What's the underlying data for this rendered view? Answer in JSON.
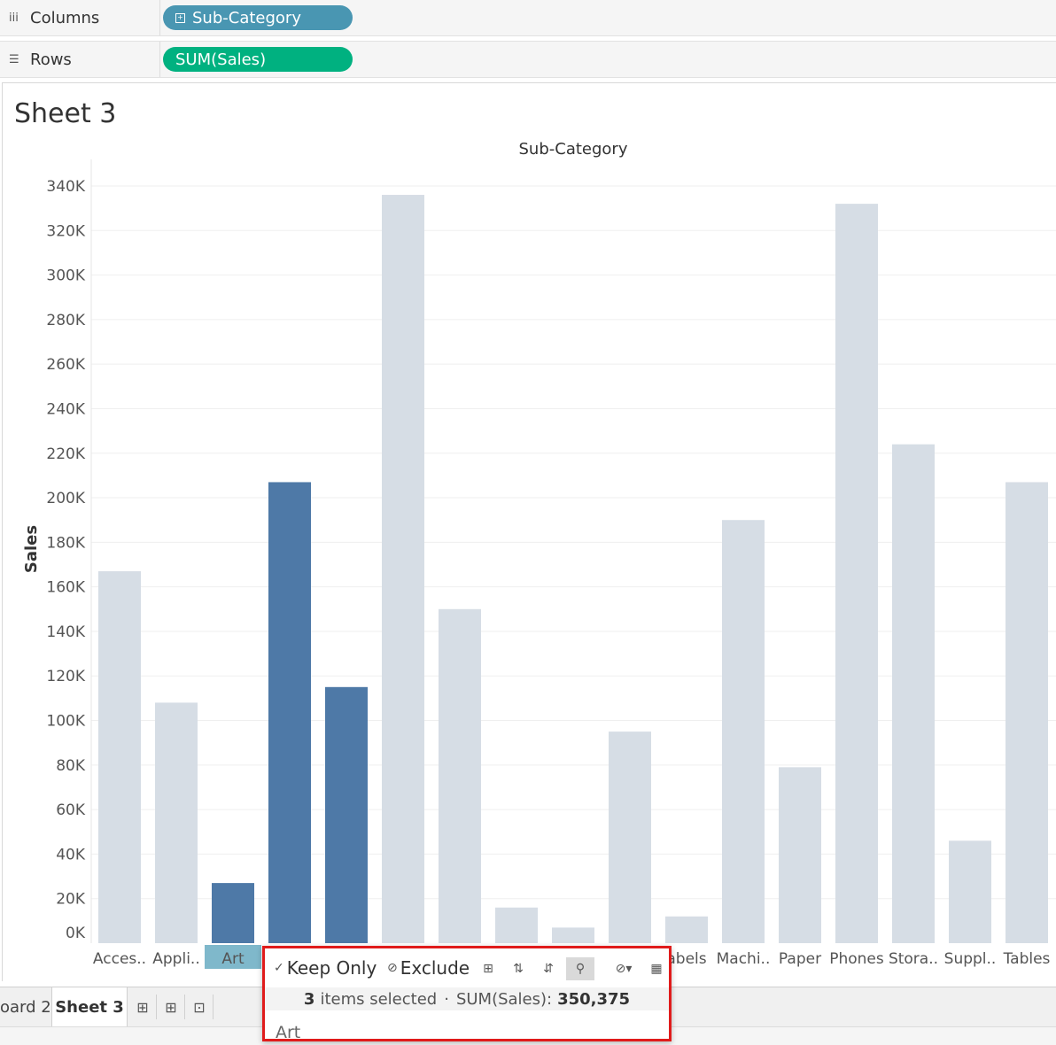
{
  "shelves": {
    "columns": {
      "label": "Columns",
      "icon": "columns-icon",
      "pill": "Sub-Category",
      "pill_color": "#4996b2"
    },
    "rows": {
      "label": "Rows",
      "icon": "rows-icon",
      "pill": "SUM(Sales)",
      "pill_color": "#00b180"
    }
  },
  "sheet": {
    "title": "Sheet 3"
  },
  "chart_data": {
    "type": "bar",
    "title": "Sub-Category",
    "xlabel": "",
    "ylabel": "Sales",
    "ylim": [
      0,
      340000
    ],
    "yticks": [
      "0K",
      "20K",
      "40K",
      "60K",
      "80K",
      "100K",
      "120K",
      "140K",
      "160K",
      "180K",
      "200K",
      "220K",
      "240K",
      "260K",
      "280K",
      "300K",
      "320K",
      "340K"
    ],
    "categories": [
      "Acces..",
      "Appli..",
      "Art",
      "",
      "",
      "",
      "",
      "",
      "",
      "",
      "abels",
      "Machi..",
      "Paper",
      "Phones",
      "Stora..",
      "Suppl..",
      "Tables"
    ],
    "values": [
      167000,
      108000,
      27000,
      207000,
      115000,
      336000,
      150000,
      16000,
      7000,
      95000,
      12000,
      190000,
      79000,
      332000,
      224000,
      46000,
      207000
    ],
    "selected": [
      false,
      false,
      true,
      true,
      true,
      false,
      false,
      false,
      false,
      false,
      false,
      false,
      false,
      false,
      false,
      false,
      false
    ],
    "colors": {
      "selected": "#4e79a7",
      "unselected": "#d6dde5",
      "highlight_label_bg": "#7fb8cb"
    },
    "grid": true
  },
  "tooltip": {
    "keep_only": "Keep Only",
    "exclude": "Exclude",
    "count": "3",
    "items_text": "items selected",
    "separator": "·",
    "measure_label": "SUM(Sales):",
    "measure_value": "350,375",
    "first_item": "Art"
  },
  "tabs": {
    "items": [
      {
        "label": "oard 2",
        "active": false
      },
      {
        "label": "Sheet 3",
        "active": true
      }
    ],
    "buttons": [
      "new-worksheet-icon",
      "new-dashboard-icon",
      "new-story-icon"
    ]
  }
}
